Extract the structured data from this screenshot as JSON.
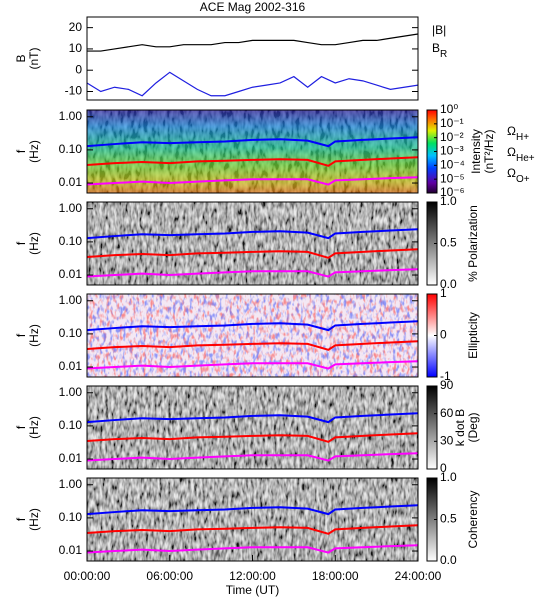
{
  "chart_data": [
    {
      "type": "line",
      "title": "ACE Mag 2002-316",
      "ylabel": [
        "B",
        "(nT)"
      ],
      "x": [
        0,
        1,
        2,
        3,
        4,
        5,
        6,
        7,
        8,
        9,
        10,
        11,
        12,
        13,
        14,
        15,
        16,
        17,
        18,
        19,
        20,
        21,
        22,
        23,
        24
      ],
      "xlim": [
        0,
        24
      ],
      "ylim": [
        -14,
        25
      ],
      "yticks": [
        -10,
        0,
        10,
        20
      ],
      "series": [
        {
          "name": "|B|",
          "color": "#000000",
          "values": [
            9,
            9,
            10,
            11,
            12,
            11,
            11,
            12,
            12,
            12,
            13,
            13,
            14,
            14,
            14,
            14,
            13,
            12,
            12,
            13,
            14,
            14,
            15,
            16,
            17
          ]
        },
        {
          "name": "B_R",
          "color": "#1f1fe0",
          "values": [
            -6,
            -10,
            -8,
            -9,
            -12,
            -6,
            -1,
            -5,
            -9,
            -12,
            -12,
            -10,
            -8,
            -7,
            -6,
            -3,
            -8,
            -3,
            -6,
            -4,
            -5,
            -7,
            -9,
            -8,
            -7
          ]
        }
      ]
    },
    {
      "type": "spectrogram",
      "ylabel": [
        "f",
        "(Hz)"
      ],
      "log_y": true,
      "ylim": [
        0.005,
        1.6
      ],
      "yticks": [
        0.01,
        {
          "value": 0.1,
          "label": "0.10"
        },
        {
          "value": 1,
          "label": "1.00"
        }
      ],
      "xlim": [
        0,
        24
      ],
      "colormap": "rainbow",
      "colorbar": {
        "label": [
          "Intensity",
          "(nT²/Hz)"
        ],
        "log": true,
        "lim": [
          1e-06,
          1
        ],
        "ticks": [
          {
            "value": 1,
            "label": "10⁰"
          },
          {
            "value": 0.1,
            "label": "10⁻¹"
          },
          {
            "value": 0.01,
            "label": "10⁻²"
          },
          {
            "value": 0.001,
            "label": "10⁻³"
          },
          {
            "value": 0.0001,
            "label": "10⁻⁴"
          },
          {
            "value": 1e-05,
            "label": "10⁻⁵"
          },
          {
            "value": 1e-06,
            "label": "10⁻⁶"
          }
        ]
      },
      "x": [
        0,
        2,
        4,
        6,
        8,
        10,
        12,
        14,
        16,
        17.5,
        18,
        20,
        22,
        24
      ],
      "series": [
        {
          "name": "Ω_H+",
          "color": "#0000ff",
          "values": [
            0.13,
            0.15,
            0.17,
            0.16,
            0.17,
            0.18,
            0.2,
            0.21,
            0.19,
            0.13,
            0.18,
            0.2,
            0.22,
            0.24
          ]
        },
        {
          "name": "Ω_He+",
          "color": "#ff0000",
          "values": [
            0.035,
            0.04,
            0.043,
            0.04,
            0.045,
            0.047,
            0.05,
            0.052,
            0.05,
            0.033,
            0.045,
            0.05,
            0.055,
            0.06
          ]
        },
        {
          "name": "Ω_O+",
          "color": "#ff00ff",
          "values": [
            0.009,
            0.01,
            0.011,
            0.01,
            0.011,
            0.012,
            0.013,
            0.013,
            0.013,
            0.009,
            0.012,
            0.013,
            0.014,
            0.015
          ]
        }
      ]
    },
    {
      "type": "spectrogram",
      "ylabel": [
        "f",
        "(Hz)"
      ],
      "log_y": true,
      "ylim": [
        0.005,
        1.6
      ],
      "yticks": [
        0.01,
        {
          "value": 0.1,
          "label": "0.10"
        },
        {
          "value": 1,
          "label": "1.00"
        }
      ],
      "xlim": [
        0,
        24
      ],
      "colormap": "gray",
      "colorbar": {
        "label": [
          "% Polarization"
        ],
        "log": false,
        "lim": [
          0,
          1
        ],
        "ticks": [
          {
            "value": 0,
            "label": "0.0"
          },
          0.5,
          {
            "value": 1,
            "label": "1.0"
          }
        ]
      }
    },
    {
      "type": "spectrogram",
      "ylabel": [
        "f",
        "(Hz)"
      ],
      "log_y": true,
      "ylim": [
        0.005,
        1.6
      ],
      "yticks": [
        0.01,
        {
          "value": 0.1,
          "label": "0.10"
        },
        {
          "value": 1,
          "label": "1.00"
        }
      ],
      "xlim": [
        0,
        24
      ],
      "colormap": "bwr",
      "colorbar": {
        "label": [
          "Ellipticity"
        ],
        "log": false,
        "lim": [
          -1,
          1
        ],
        "ticks": [
          -1,
          0,
          1
        ]
      }
    },
    {
      "type": "spectrogram",
      "ylabel": [
        "f",
        "(Hz)"
      ],
      "log_y": true,
      "ylim": [
        0.005,
        1.6
      ],
      "yticks": [
        0.01,
        {
          "value": 0.1,
          "label": "0.10"
        },
        {
          "value": 1,
          "label": "1.00"
        }
      ],
      "xlim": [
        0,
        24
      ],
      "colormap": "gray",
      "colorbar": {
        "label": [
          "k dot B",
          "(Deg)"
        ],
        "log": false,
        "lim": [
          0,
          90
        ],
        "ticks": [
          0,
          30,
          60,
          90
        ]
      }
    },
    {
      "type": "spectrogram",
      "ylabel": [
        "f",
        "(Hz)"
      ],
      "log_y": true,
      "ylim": [
        0.005,
        1.6
      ],
      "yticks": [
        0.01,
        {
          "value": 0.1,
          "label": "0.10"
        },
        {
          "value": 1,
          "label": "1.00"
        }
      ],
      "xlim": [
        0,
        24
      ],
      "colormap": "gray",
      "colorbar": {
        "label": [
          "Coherency"
        ],
        "log": false,
        "lim": [
          0,
          1
        ],
        "ticks": [
          {
            "value": 0,
            "label": "0.0"
          },
          0.5,
          {
            "value": 1,
            "label": "1.0"
          }
        ]
      },
      "xlabel": "Time (UT)",
      "xticks": [
        {
          "value": 0,
          "label": "00:00:00"
        },
        {
          "value": 6,
          "label": "06:00:00"
        },
        {
          "value": 12,
          "label": "12:00:00"
        },
        {
          "value": 18,
          "label": "18:00:00"
        },
        {
          "value": 24,
          "label": "24:00:00"
        }
      ]
    }
  ]
}
